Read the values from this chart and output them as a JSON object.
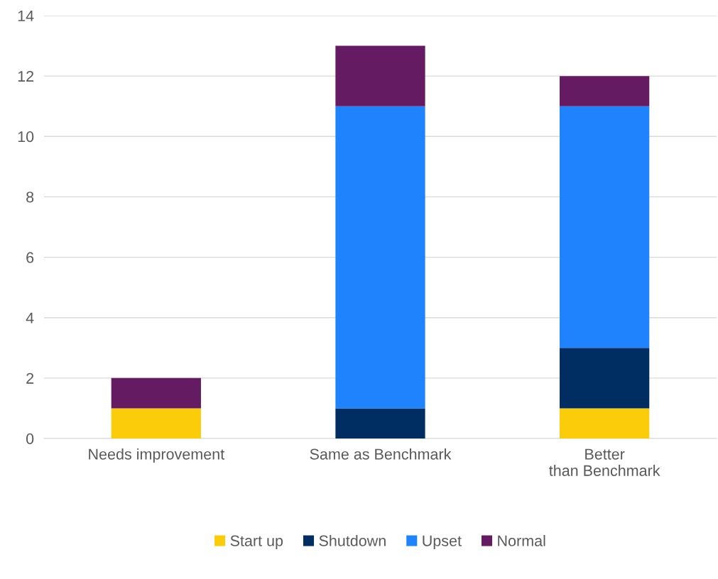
{
  "chart_data": {
    "type": "bar",
    "stacked": true,
    "categories": [
      "Needs improvement",
      "Same as Benchmark",
      "Better than Benchmark"
    ],
    "series": [
      {
        "name": "Start up",
        "color": "#facc0a",
        "values": [
          1,
          0,
          1
        ]
      },
      {
        "name": "Shutdown",
        "color": "#002d62",
        "values": [
          0,
          1,
          2
        ]
      },
      {
        "name": "Upset",
        "color": "#1f83fe",
        "values": [
          0,
          10,
          8
        ]
      },
      {
        "name": "Normal",
        "color": "#641b62",
        "values": [
          1,
          2,
          1
        ]
      }
    ],
    "ylim": [
      0,
      14
    ],
    "yticks": [
      0,
      2,
      4,
      6,
      8,
      10,
      12,
      14
    ],
    "grid": "y",
    "legend": "bottom"
  }
}
